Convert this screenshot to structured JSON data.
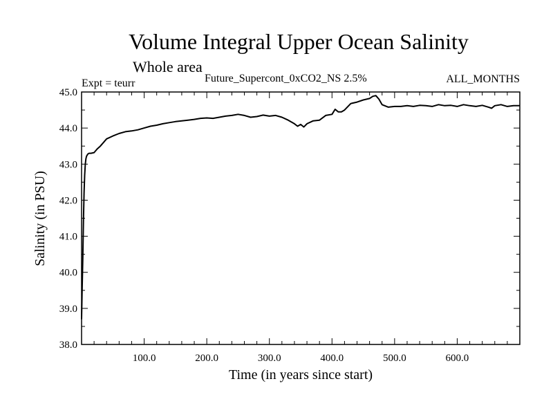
{
  "chart_data": {
    "type": "line",
    "title": "Volume Integral Upper Ocean Salinity",
    "subtitle": "Whole area",
    "expt_label": "Expt = teurr",
    "run_label": "Future_Supercont_0xCO2_NS 2.5%",
    "months_label": "ALL_MONTHS",
    "xlabel": "Time (in years since start)",
    "ylabel": "Salinity (in PSU)",
    "xlim": [
      0,
      700
    ],
    "ylim": [
      38.0,
      45.0
    ],
    "x_ticks": [
      100,
      200,
      300,
      400,
      500,
      600
    ],
    "x_tick_labels": [
      "100.0",
      "200.0",
      "300.0",
      "400.0",
      "500.0",
      "600.0"
    ],
    "y_ticks": [
      38,
      39,
      40,
      41,
      42,
      43,
      44,
      45
    ],
    "y_tick_labels": [
      "38.0",
      "39.0",
      "40.0",
      "41.0",
      "42.0",
      "43.0",
      "44.0",
      "45.0"
    ],
    "grid": false,
    "series": [
      {
        "color": "#000000",
        "x": [
          0,
          1,
          2,
          3,
          4,
          5,
          6,
          7,
          8,
          10,
          12,
          15,
          20,
          25,
          30,
          40,
          50,
          60,
          70,
          80,
          90,
          100,
          110,
          120,
          130,
          140,
          150,
          160,
          170,
          180,
          190,
          200,
          210,
          220,
          230,
          240,
          250,
          260,
          270,
          280,
          290,
          300,
          310,
          320,
          330,
          340,
          345,
          350,
          355,
          360,
          370,
          380,
          390,
          400,
          405,
          410,
          415,
          420,
          430,
          440,
          450,
          460,
          465,
          470,
          475,
          480,
          490,
          500,
          510,
          520,
          530,
          540,
          550,
          560,
          570,
          580,
          590,
          600,
          610,
          620,
          630,
          640,
          650,
          655,
          660,
          670,
          680,
          690,
          700
        ],
        "y": [
          38.7,
          39.6,
          40.4,
          41.4,
          42.2,
          42.7,
          43.0,
          43.15,
          43.22,
          43.28,
          43.3,
          43.3,
          43.32,
          43.42,
          43.5,
          43.7,
          43.78,
          43.85,
          43.9,
          43.92,
          43.95,
          44.0,
          44.05,
          44.08,
          44.12,
          44.15,
          44.18,
          44.2,
          44.22,
          44.24,
          44.27,
          44.28,
          44.27,
          44.3,
          44.33,
          44.35,
          44.38,
          44.35,
          44.3,
          44.32,
          44.36,
          44.33,
          44.35,
          44.3,
          44.22,
          44.12,
          44.05,
          44.1,
          44.03,
          44.12,
          44.2,
          44.22,
          44.35,
          44.38,
          44.52,
          44.45,
          44.45,
          44.5,
          44.68,
          44.72,
          44.78,
          44.82,
          44.88,
          44.9,
          44.8,
          44.65,
          44.58,
          44.6,
          44.6,
          44.62,
          44.6,
          44.63,
          44.62,
          44.6,
          44.65,
          44.62,
          44.63,
          44.6,
          44.65,
          44.62,
          44.6,
          44.63,
          44.58,
          44.55,
          44.62,
          44.65,
          44.6,
          44.62,
          44.62
        ]
      }
    ]
  }
}
